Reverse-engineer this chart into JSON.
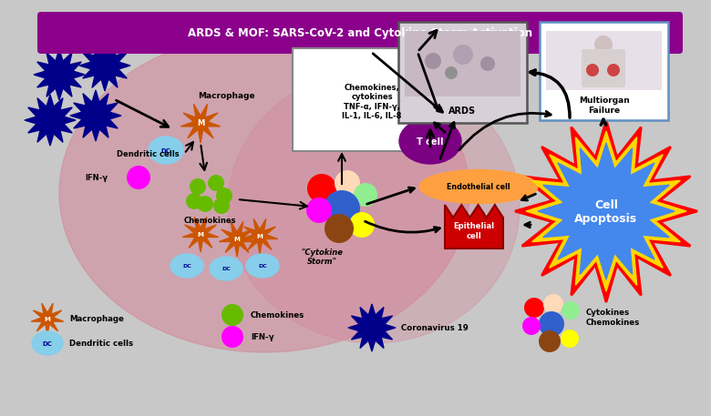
{
  "title": "ARDS & MOF: SARS-CoV-2 and Cytokine Storm Activation",
  "title_bg": "#8B008B",
  "title_color": "#FFFFFF",
  "bg_color": "#C8C8C8",
  "lung_color": "#D4869A",
  "colors": {
    "macrophage": "#CC5500",
    "dc": "#87CEEB",
    "virus": "#00008B",
    "chemokine_green": "#66BB00",
    "ifn_pink": "#FF00FF",
    "tcell": "#7B0082",
    "endothelial": "#FFA040",
    "epithelial_face": "#CC0000",
    "epithelial_edge": "#8B0000",
    "apoptosis_blue": "#4488EE",
    "apoptosis_red": "#FF0000",
    "apoptosis_yellow": "#FFD700",
    "cytokine_red": "#FF0000",
    "cytokine_peach": "#FFDAB9",
    "cytokine_green": "#90EE90",
    "cytokine_blue": "#3060CC",
    "cytokine_magenta": "#FF00FF",
    "cytokine_yellow": "#FFFF00",
    "cytokine_brown": "#8B4513",
    "arrow_color": "#000000",
    "ards_img": "#C0B0C0",
    "ards_img2": "#A09090",
    "mof_img": "#E8C0C0",
    "mof_border": "#6090C0"
  }
}
